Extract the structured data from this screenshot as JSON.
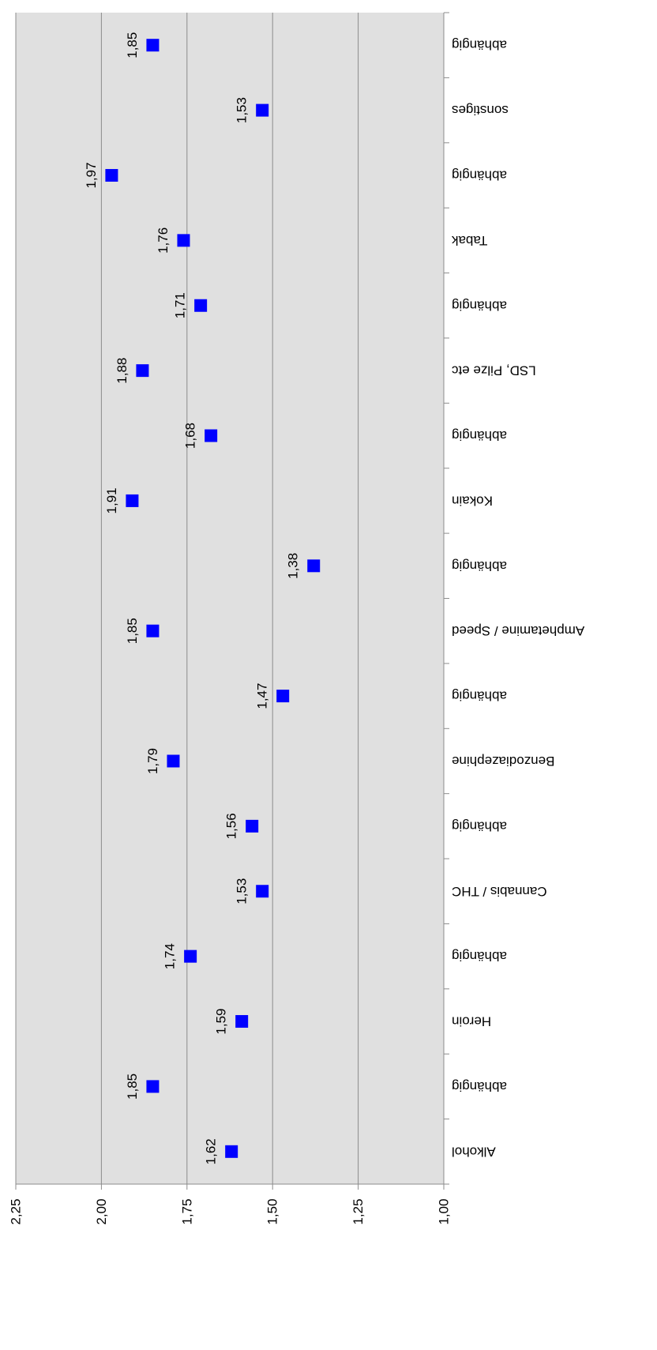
{
  "chart_data": {
    "type": "scatter",
    "orientation": "rotated-180",
    "categories": [
      "Alkohol",
      "abhängig",
      "Heroin",
      "abhängig",
      "Cannabis / THC",
      "abhängig",
      "Benzodiazephine",
      "abhängig",
      "Amphetamine / Speed",
      "abhängig",
      "Kokain",
      "abhängig",
      "LSD, Pilze etc",
      "abhängig",
      "Tabak",
      "abhängig",
      "sonstiges",
      "abhängig"
    ],
    "values": [
      1.62,
      1.85,
      1.59,
      1.74,
      1.53,
      1.56,
      1.79,
      1.47,
      1.85,
      1.38,
      1.91,
      1.68,
      1.88,
      1.71,
      1.76,
      1.97,
      1.53,
      1.85
    ],
    "data_labels": [
      "1,62",
      "1,85",
      "1,59",
      "1,74",
      "1,53",
      "1,56",
      "1,79",
      "1,47",
      "1,85",
      "1,38",
      "1,91",
      "1,68",
      "1,88",
      "1,71",
      "1,76",
      "1,97",
      "1,53",
      "1,85"
    ],
    "value_axis": {
      "min": 1.0,
      "max": 2.25,
      "reversed": true,
      "ticks": [
        1.0,
        1.25,
        1.5,
        1.75,
        2.0,
        2.25
      ],
      "tick_labels": [
        "1,00",
        "1,25",
        "1,50",
        "1,75",
        "2,00",
        "2,25"
      ]
    },
    "grid": true,
    "legend": "none",
    "marker": "square",
    "colors": {
      "marker": "#0000ff",
      "plot_background": "#e0e0e0",
      "grid": "#8c8c8c",
      "axis": "#8c8c8c"
    }
  }
}
